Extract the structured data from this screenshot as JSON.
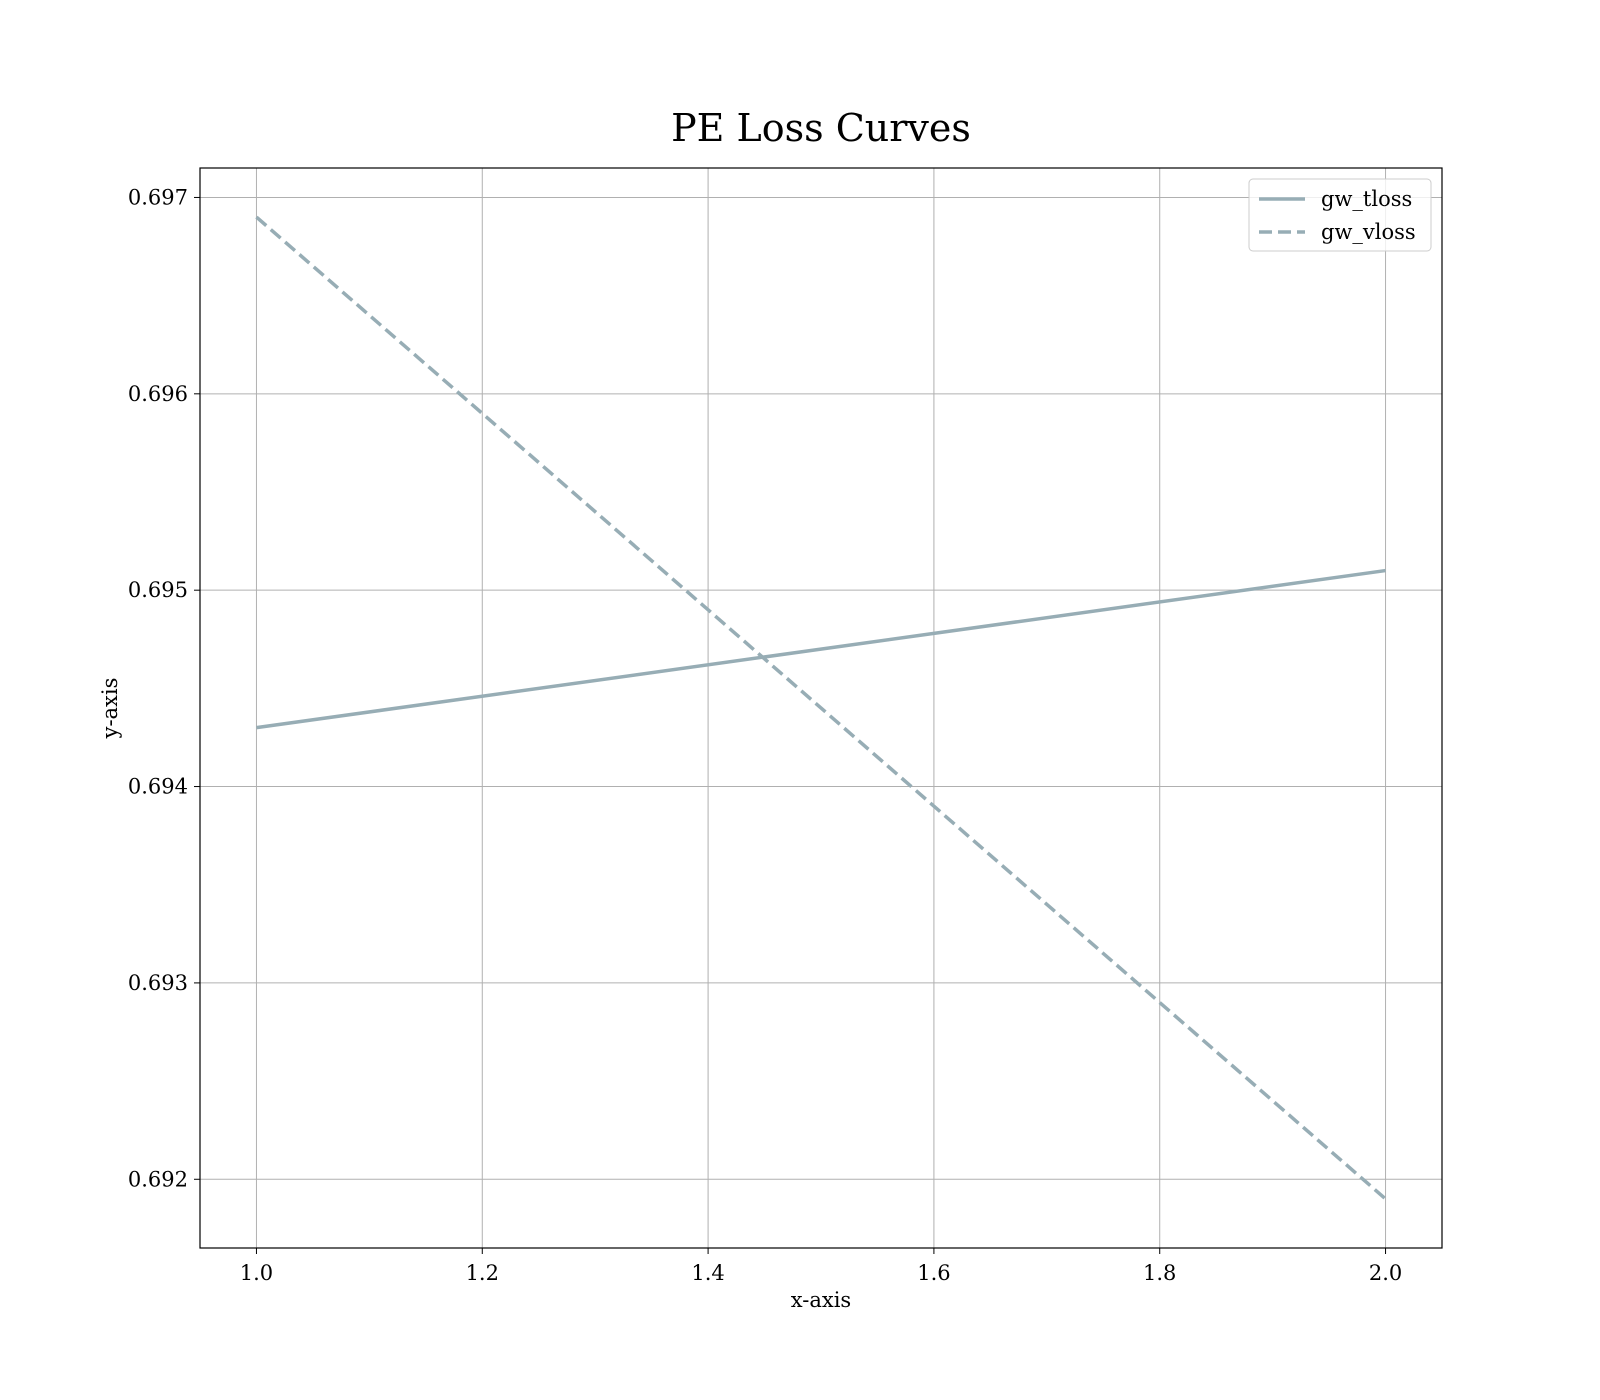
{
  "chart_data": {
    "type": "line",
    "title": "PE Loss Curves",
    "xlabel": "x-axis",
    "ylabel": "y-axis",
    "xlim": [
      0.95,
      2.05
    ],
    "ylim": [
      0.69165,
      0.69715
    ],
    "xticks": [
      1.0,
      1.2,
      1.4,
      1.6,
      1.8,
      2.0
    ],
    "xtick_labels": [
      "1.0",
      "1.2",
      "1.4",
      "1.6",
      "1.8",
      "2.0"
    ],
    "yticks": [
      0.692,
      0.693,
      0.694,
      0.695,
      0.696,
      0.697
    ],
    "ytick_labels": [
      "0.692",
      "0.693",
      "0.694",
      "0.695",
      "0.696",
      "0.697"
    ],
    "grid": true,
    "legend_position": "top-right",
    "x": [
      1.0,
      2.0
    ],
    "series": [
      {
        "name": "gw_tloss",
        "values": [
          0.6943,
          0.6951
        ],
        "style": "solid",
        "color": "#97adb5"
      },
      {
        "name": "gw_vloss",
        "values": [
          0.6969,
          0.6919
        ],
        "style": "dashed",
        "color": "#97adb5"
      }
    ]
  }
}
